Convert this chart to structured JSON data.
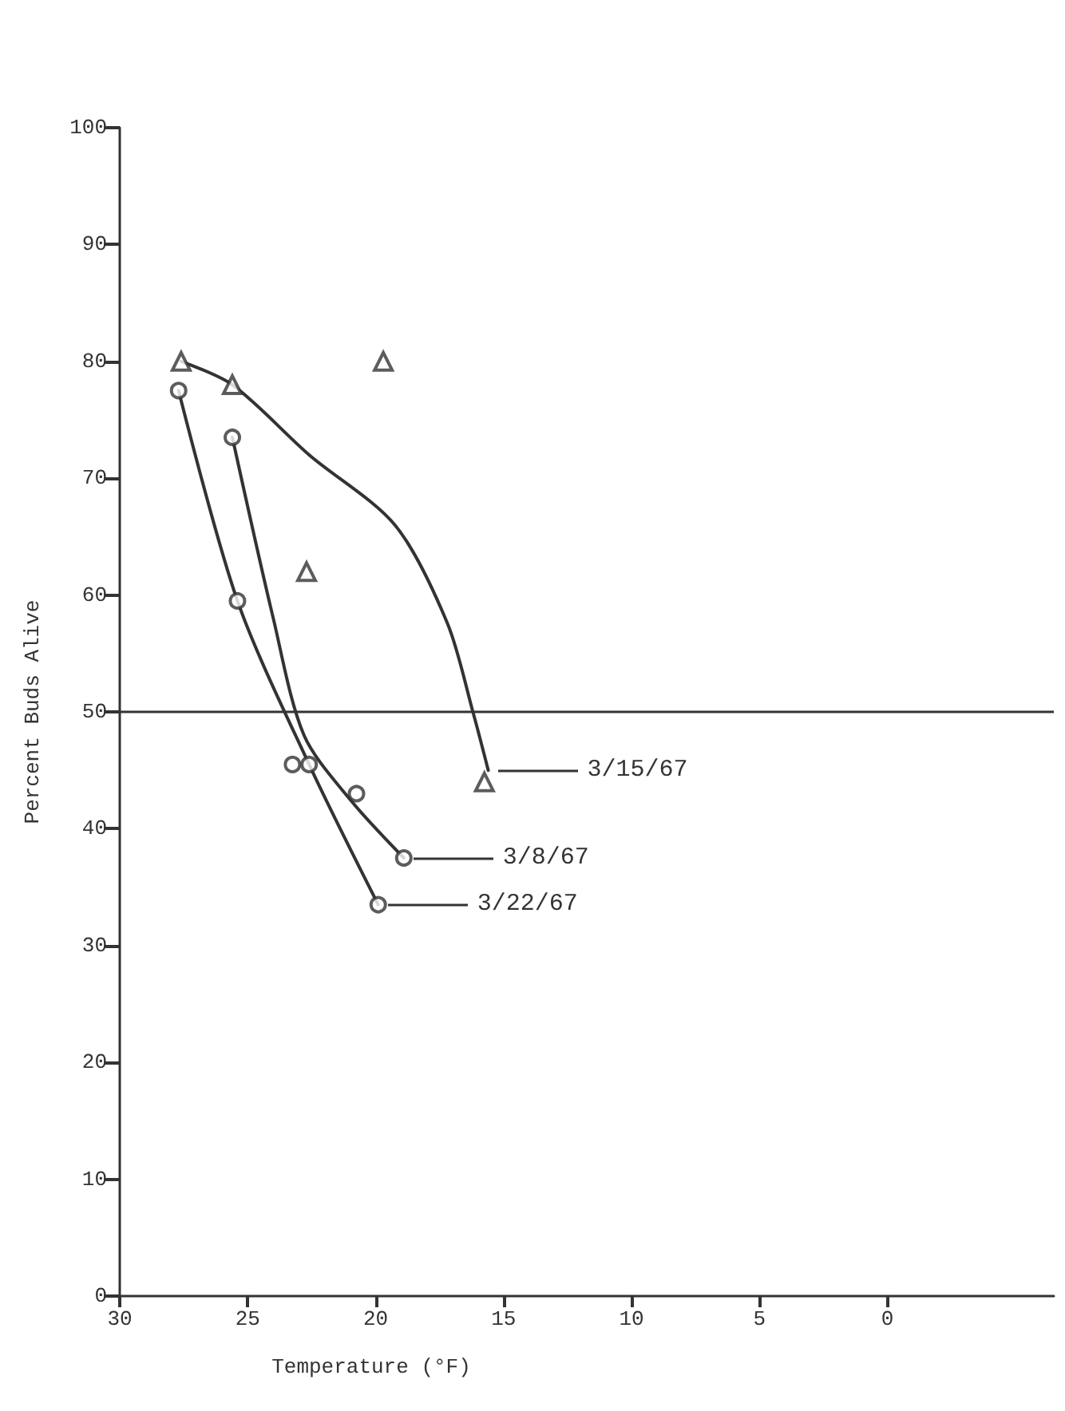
{
  "chart_data": {
    "type": "scatter",
    "xlabel": "Temperature (°F)",
    "ylabel": "Percent Buds Alive",
    "xlim": [
      30,
      -6.5
    ],
    "xticks": [
      30,
      25,
      20,
      15,
      10,
      5,
      0
    ],
    "ylim": [
      0,
      100
    ],
    "yticks": [
      0,
      10,
      20,
      30,
      40,
      50,
      60,
      70,
      80,
      90,
      100
    ],
    "grid": false,
    "legend": "bottom left",
    "series": [
      {
        "marker": "triangle",
        "color": "#333333",
        "x": [
          27.6,
          25.6,
          19.7,
          22.7,
          15.75
        ],
        "values": [
          80,
          78,
          80,
          62,
          44
        ]
      },
      {
        "type": "line",
        "name": "3/15/67",
        "marker": "none",
        "color": "#333333",
        "x": [
          27.6,
          25.6,
          22.6,
          19.25,
          17.2,
          16.2,
          15.6
        ],
        "values": [
          80,
          78,
          72,
          66,
          57.6,
          50,
          45
        ]
      },
      {
        "marker": "circle",
        "color": "#333333",
        "x": [
          27.7,
          25.4,
          22.6,
          19.9
        ],
        "values": [
          77.5,
          59.5,
          45.5,
          33.5
        ]
      },
      {
        "type": "line",
        "name": "3/22/67",
        "marker": "none",
        "color": "#333333",
        "x": [
          27.7,
          25.4,
          22.6,
          19.9
        ],
        "values": [
          77.5,
          59.5,
          45.5,
          33.5
        ]
      },
      {
        "marker": "circle",
        "color": "#333333",
        "x": [
          25.6,
          23.25,
          20.75,
          18.9
        ],
        "values": [
          73.5,
          45.5,
          43,
          37.5
        ]
      },
      {
        "type": "line",
        "name": "3/8/67",
        "marker": "none",
        "color": "#333333",
        "x": [
          25.6,
          24,
          22.8,
          21,
          18.9
        ],
        "values": [
          73.5,
          58,
          48,
          42.5,
          37.5
        ]
      }
    ],
    "ref_lines": [
      {
        "axis": "y",
        "value": 50,
        "color": "#333333"
      }
    ]
  }
}
